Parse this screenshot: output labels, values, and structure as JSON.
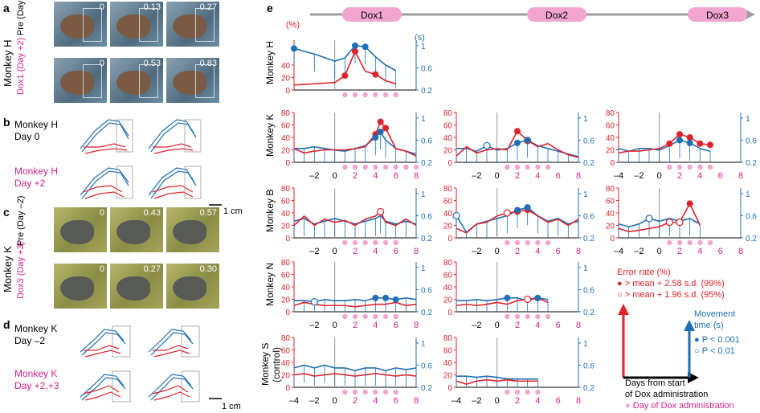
{
  "panels": {
    "a": {
      "letter": "a",
      "subject": "Monkey H",
      "row1": "Pre (Day 0)",
      "row2": "Dox1 (Day +2)",
      "row1_times": [
        "0",
        "0.13",
        "0.27"
      ],
      "row2_times": [
        "0",
        "0.53",
        "0.83"
      ]
    },
    "b": {
      "letter": "b",
      "cond1_line1": "Monkey H",
      "cond1_line2": "Day 0",
      "cond2_line1": "Monkey H",
      "cond2_line2": "Day +2",
      "scale": "1 cm"
    },
    "c": {
      "letter": "c",
      "subject": "Monkey K",
      "row1": "Pre (Day –2)",
      "row2": "Dox3 (Day +3)",
      "row1_times": [
        "0",
        "0.43",
        "0.57"
      ],
      "row2_times": [
        "0",
        "0.27",
        "0.30"
      ]
    },
    "d": {
      "letter": "d",
      "cond1_line1": "Monkey K",
      "cond1_line2": "Day –2",
      "cond2_line1": "Monkey K",
      "cond2_line2": "Day +2,+3",
      "scale": "1 cm"
    },
    "e": {
      "letter": "e"
    }
  },
  "colors": {
    "error": "#e0222c",
    "movement": "#1f6fb5",
    "dox": "#f2a6cf",
    "magenta": "#d6218f",
    "arrow": "#9e9e9e"
  },
  "timeline": {
    "labels": [
      "Dox1",
      "Dox2",
      "Dox3"
    ]
  },
  "chart_data": {
    "type": "line",
    "x_label": "Days from start of Dox administration",
    "left_unit": "(%)",
    "right_unit": "(s)",
    "monkeys": [
      "Monkey H",
      "Monkey K",
      "Monkey B",
      "Monkey N",
      "Monkey S (control)"
    ],
    "left_ticks": [
      "0",
      "20",
      "40",
      "60",
      "80"
    ],
    "right_ticks": [
      "0.2",
      "0.6",
      "1"
    ],
    "x_ticks_col1": [
      "–2",
      "0",
      "2",
      "4",
      "6",
      "8"
    ],
    "x_ticks_col2": [
      "–2",
      "0",
      "2",
      "4",
      "6",
      "8"
    ],
    "x_ticks_col3": [
      "–4",
      "–2",
      "0",
      "2",
      "4",
      "6",
      "8"
    ],
    "bottom_ticks_col1": [
      "–4",
      "–2",
      "0",
      "2",
      "4",
      "6",
      "8"
    ],
    "bottom_ticks_col2": [
      "–4",
      "–2",
      "0",
      "2",
      "4",
      "6",
      "8"
    ],
    "grid": false,
    "panels": [
      {
        "row": 0,
        "col": 0,
        "dox_days": [
          1,
          2,
          3,
          4,
          5,
          6
        ],
        "error": {
          "x": [
            -4,
            -2,
            0,
            1,
            2,
            3,
            4,
            5,
            6
          ],
          "y": [
            8,
            10,
            12,
            23,
            62,
            30,
            25,
            15,
            10
          ]
        },
        "movement": {
          "x": [
            -4,
            -2,
            0,
            1,
            2,
            3,
            4,
            5,
            6
          ],
          "y": [
            0.95,
            0.85,
            0.72,
            0.78,
            1.0,
            0.98,
            0.8,
            0.65,
            0.55
          ]
        },
        "err_sig99": [
          1,
          2,
          4
        ],
        "err_sig95": [],
        "mov_sig001": [
          -4,
          2,
          3
        ],
        "mov_sig01": []
      },
      {
        "row": 1,
        "col": 0,
        "dox_days": [
          1,
          2,
          3,
          4,
          5,
          6,
          7,
          8
        ],
        "error": {
          "x": [
            -4,
            -3,
            -2,
            -1,
            0,
            1,
            2,
            3,
            4,
            4.5,
            5,
            6,
            7,
            8
          ],
          "y": [
            22,
            15,
            18,
            20,
            20,
            20,
            22,
            25,
            45,
            65,
            55,
            22,
            18,
            10
          ]
        },
        "movement": {
          "x": [
            -4,
            -3,
            -2,
            -1,
            0,
            1,
            2,
            3,
            4,
            4.5,
            5,
            6,
            7,
            8
          ],
          "y": [
            0.45,
            0.45,
            0.48,
            0.45,
            0.42,
            0.4,
            0.45,
            0.5,
            0.65,
            0.75,
            0.6,
            0.45,
            0.4,
            0.35
          ]
        },
        "err_sig99": [
          4,
          4.5,
          5
        ],
        "err_sig95": [],
        "mov_sig001": [
          4,
          4.5
        ],
        "mov_sig01": []
      },
      {
        "row": 1,
        "col": 1,
        "dox_days": [
          1,
          2,
          3,
          4,
          5
        ],
        "error": {
          "x": [
            -4,
            -3,
            -2,
            -1,
            0,
            1,
            2,
            3,
            4,
            5,
            6,
            7,
            8
          ],
          "y": [
            10,
            25,
            15,
            20,
            22,
            20,
            50,
            35,
            25,
            30,
            20,
            12,
            8
          ]
        },
        "movement": {
          "x": [
            -4,
            -3,
            -2,
            -1,
            0,
            1,
            2,
            3,
            4,
            5,
            6,
            7,
            8
          ],
          "y": [
            0.45,
            0.45,
            0.4,
            0.5,
            0.42,
            0.45,
            0.55,
            0.6,
            0.5,
            0.45,
            0.4,
            0.35,
            0.3
          ]
        },
        "err_sig99": [
          2
        ],
        "err_sig95": [
          3
        ],
        "mov_sig001": [
          2,
          3
        ],
        "mov_sig01": [
          -1
        ]
      },
      {
        "row": 1,
        "col": 2,
        "dox_days": [
          1,
          2,
          3,
          4,
          5
        ],
        "error": {
          "x": [
            -4,
            -3,
            -2,
            -1,
            0,
            1,
            2,
            3,
            4,
            5
          ],
          "y": [
            15,
            18,
            18,
            20,
            22,
            30,
            45,
            40,
            30,
            28
          ]
        },
        "movement": {
          "x": [
            -4,
            -3,
            -2,
            -1,
            0,
            1,
            2,
            3,
            4,
            5
          ],
          "y": [
            0.45,
            0.4,
            0.45,
            0.45,
            0.42,
            0.5,
            0.6,
            0.55,
            0.45,
            0.4
          ]
        },
        "err_sig99": [
          1,
          2,
          3,
          4,
          5
        ],
        "err_sig95": [],
        "mov_sig001": [
          2,
          3
        ],
        "mov_sig01": []
      },
      {
        "row": 2,
        "col": 0,
        "dox_days": [
          1,
          2,
          3,
          4,
          5,
          6
        ],
        "error": {
          "x": [
            -4,
            -3,
            -2,
            -1,
            0,
            1,
            2,
            3,
            4,
            4.5,
            5,
            6,
            7,
            8
          ],
          "y": [
            20,
            35,
            20,
            30,
            25,
            28,
            20,
            30,
            35,
            42,
            25,
            20,
            30,
            20
          ]
        },
        "movement": {
          "x": [
            -4,
            -3,
            -2,
            -1,
            0,
            1,
            2,
            3,
            4,
            4.5,
            5,
            6,
            7,
            8
          ],
          "y": [
            0.5,
            0.55,
            0.45,
            0.5,
            0.55,
            0.5,
            0.45,
            0.5,
            0.55,
            0.6,
            0.5,
            0.45,
            0.5,
            0.45
          ]
        },
        "err_sig99": [],
        "err_sig95": [
          4.5
        ],
        "mov_sig001": [],
        "mov_sig01": []
      },
      {
        "row": 2,
        "col": 1,
        "dox_days": [
          1,
          2,
          3,
          4,
          5
        ],
        "error": {
          "x": [
            -4,
            -3,
            -2,
            -1,
            0,
            1,
            2,
            3,
            4,
            5,
            6,
            7,
            8
          ],
          "y": [
            15,
            8,
            22,
            25,
            35,
            40,
            42,
            45,
            35,
            25,
            30,
            20,
            30
          ]
        },
        "movement": {
          "x": [
            -4,
            -3,
            -2,
            -1,
            0,
            1,
            2,
            3,
            4,
            5,
            6,
            7,
            8
          ],
          "y": [
            0.6,
            0.3,
            0.45,
            0.5,
            0.55,
            0.6,
            0.7,
            0.75,
            0.6,
            0.5,
            0.55,
            0.45,
            0.5
          ]
        },
        "err_sig99": [
          2,
          3
        ],
        "err_sig95": [
          1
        ],
        "mov_sig001": [
          2,
          3
        ],
        "mov_sig01": [
          -4
        ]
      },
      {
        "row": 2,
        "col": 2,
        "dox_days": [
          1,
          2,
          3,
          4,
          5
        ],
        "error": {
          "x": [
            -4,
            -3,
            -2,
            -1,
            0,
            1,
            2,
            3,
            4
          ],
          "y": [
            15,
            10,
            12,
            15,
            18,
            25,
            25,
            55,
            20
          ]
        },
        "movement": {
          "x": [
            -4,
            -3,
            -2,
            -1,
            0,
            1,
            2,
            3,
            4
          ],
          "y": [
            0.45,
            0.4,
            0.45,
            0.55,
            0.5,
            0.55,
            0.5,
            0.55,
            0.45
          ]
        },
        "err_sig99": [
          3
        ],
        "err_sig95": [
          1,
          2
        ],
        "mov_sig001": [],
        "mov_sig01": [
          -1
        ]
      },
      {
        "row": 3,
        "col": 0,
        "dox_days": [
          1,
          2,
          3,
          4,
          5,
          6
        ],
        "error": {
          "x": [
            -4,
            -3,
            -2,
            -1,
            0,
            1,
            2,
            3,
            4,
            5,
            6,
            7,
            8
          ],
          "y": [
            10,
            15,
            12,
            10,
            10,
            10,
            8,
            10,
            12,
            12,
            15,
            10,
            12
          ]
        },
        "movement": {
          "x": [
            -4,
            -3,
            -2,
            -1,
            0,
            1,
            2,
            3,
            4,
            5,
            6,
            7,
            8
          ],
          "y": [
            0.4,
            0.4,
            0.38,
            0.42,
            0.4,
            0.4,
            0.42,
            0.4,
            0.45,
            0.45,
            0.42,
            0.45,
            0.42
          ]
        },
        "err_sig99": [],
        "err_sig95": [],
        "mov_sig001": [
          4,
          5,
          6
        ],
        "mov_sig01": [
          -2
        ]
      },
      {
        "row": 3,
        "col": 1,
        "dox_days": [
          1,
          2,
          3,
          4,
          5
        ],
        "error": {
          "x": [
            -4,
            -3,
            -2,
            -1,
            0,
            1,
            2,
            3,
            4,
            5
          ],
          "y": [
            10,
            12,
            10,
            12,
            15,
            12,
            18,
            20,
            22,
            15
          ]
        },
        "movement": {
          "x": [
            -4,
            -3,
            -2,
            -1,
            0,
            1,
            2,
            3,
            4,
            5
          ],
          "y": [
            0.4,
            0.4,
            0.42,
            0.4,
            0.42,
            0.45,
            0.45,
            0.4,
            0.45,
            0.42
          ]
        },
        "err_sig99": [
          3,
          4
        ],
        "err_sig95": [
          3
        ],
        "mov_sig001": [
          1,
          4
        ],
        "mov_sig01": []
      },
      {
        "row": 4,
        "col": 0,
        "dox_days": [
          1,
          2,
          3,
          4,
          5,
          6
        ],
        "error": {
          "x": [
            -4,
            -3,
            -2,
            -1,
            0,
            1,
            2,
            3,
            4,
            5,
            6,
            7,
            8
          ],
          "y": [
            20,
            22,
            18,
            20,
            22,
            20,
            18,
            20,
            22,
            20,
            18,
            20,
            18
          ]
        },
        "movement": {
          "x": [
            -4,
            -3,
            -2,
            -1,
            0,
            1,
            2,
            3,
            4,
            5,
            6,
            7,
            8
          ],
          "y": [
            0.55,
            0.6,
            0.55,
            0.6,
            0.55,
            0.55,
            0.5,
            0.55,
            0.55,
            0.5,
            0.55,
            0.52,
            0.55
          ]
        },
        "err_sig99": [],
        "err_sig95": [],
        "mov_sig001": [],
        "mov_sig01": []
      },
      {
        "row": 4,
        "col": 1,
        "dox_days": [
          1,
          2,
          3,
          4
        ],
        "error": {
          "x": [
            -4,
            -3,
            -2,
            -1,
            0,
            1,
            2,
            3,
            4
          ],
          "y": [
            10,
            5,
            10,
            12,
            10,
            12,
            10,
            10,
            10
          ]
        },
        "movement": {
          "x": [
            -4,
            -3,
            -2,
            -1,
            0,
            1,
            2,
            3,
            4
          ],
          "y": [
            0.4,
            0.4,
            0.38,
            0.4,
            0.38,
            0.35,
            0.35,
            0.35,
            0.35
          ]
        },
        "err_sig99": [],
        "err_sig95": [],
        "mov_sig001": [],
        "mov_sig01": []
      }
    ]
  },
  "legend": {
    "error_title": "Error rate (%)",
    "error_99": "> mean + 2.58 s.d. (99%)",
    "error_95": "> mean + 1.96 s.d. (95%)",
    "movement_title_line1": "Movement",
    "movement_title_line2": "time (s)",
    "p001": "P < 0.001",
    "p01": "P < 0.01",
    "days_line1": "Days from start",
    "days_line2": "of Dox administration",
    "dox_day": "Day of Dox administration"
  }
}
